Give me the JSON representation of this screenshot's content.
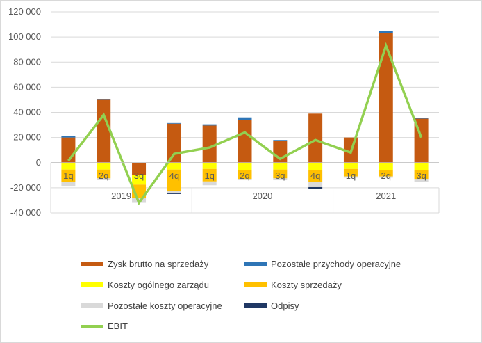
{
  "chart_data": {
    "type": "bar",
    "subtype": "stacked-bar-with-line",
    "categories": [
      "1q",
      "2q",
      "3q",
      "4q",
      "1q",
      "2q",
      "3q",
      "4q",
      "1q",
      "2q",
      "3q"
    ],
    "year_groups": [
      {
        "label": "2019",
        "count": 4
      },
      {
        "label": "2020",
        "count": 4
      },
      {
        "label": "2021",
        "count": 3
      }
    ],
    "ylim": [
      -40000,
      120000
    ],
    "yticks": [
      -40000,
      -20000,
      0,
      20000,
      40000,
      60000,
      80000,
      100000,
      120000
    ],
    "ytick_labels": [
      "-40 000",
      "-20 000",
      "0",
      "20 000",
      "40 000",
      "60 000",
      "80 000",
      "100 000",
      "120 000"
    ],
    "grid": true,
    "legend_position": "bottom",
    "series": [
      {
        "name": "Zysk brutto na sprzedaży",
        "kind": "bar",
        "color": "#C55A11",
        "values": [
          20000,
          50000,
          -10000,
          31000,
          29500,
          34000,
          17500,
          39000,
          20000,
          103000,
          35000
        ]
      },
      {
        "name": "Pozostałe przychody operacyjne",
        "kind": "bar",
        "color": "#2E75B6",
        "values": [
          1000,
          500,
          0,
          500,
          1000,
          2000,
          500,
          0,
          0,
          1500,
          500
        ]
      },
      {
        "name": "Koszty ogólnego zarządu",
        "kind": "bar",
        "color": "#FFFF00",
        "values": [
          -5500,
          -5500,
          -7500,
          -5500,
          -5000,
          -6000,
          -5500,
          -6000,
          -5000,
          -6000,
          -6000
        ]
      },
      {
        "name": "Koszty sprzedaży",
        "kind": "bar",
        "color": "#FFC000",
        "values": [
          -10000,
          -7000,
          -10500,
          -17000,
          -10000,
          -7000,
          -7000,
          -9500,
          -6000,
          -5000,
          -7000
        ]
      },
      {
        "name": "Pozostałe koszty operacyjne",
        "kind": "bar",
        "color": "#D9D9D9",
        "values": [
          -3500,
          -1000,
          -4000,
          -1500,
          -3000,
          -1000,
          -1500,
          -4000,
          -1000,
          -1000,
          -2500
        ]
      },
      {
        "name": "Odpisy",
        "kind": "bar",
        "color": "#203864",
        "values": [
          0,
          0,
          0,
          -1000,
          0,
          0,
          0,
          -1500,
          0,
          0,
          0
        ]
      },
      {
        "name": "EBIT",
        "kind": "line",
        "color": "#92D050",
        "values": [
          1500,
          38000,
          -32000,
          7000,
          12000,
          24000,
          3000,
          18000,
          8000,
          93000,
          20000
        ]
      }
    ]
  }
}
